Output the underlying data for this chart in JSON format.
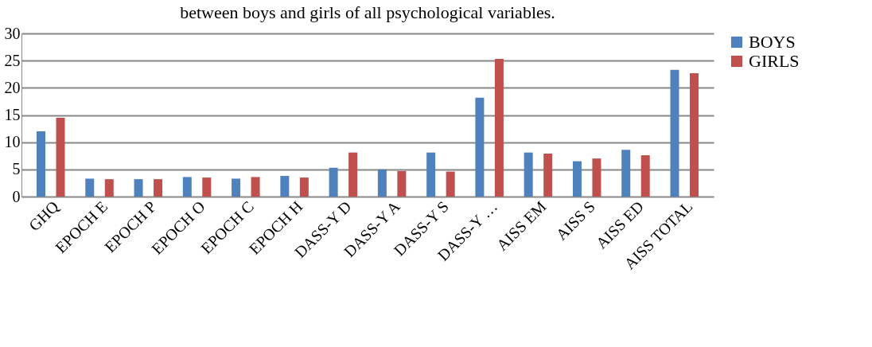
{
  "chart_data": {
    "type": "bar",
    "title": "between boys and girls of all psychological variables.",
    "categories": [
      "GHQ",
      "EPOCH E",
      "EPOCH P",
      "EPOCH O",
      "EPOCH C",
      "EPOCH H",
      "DASS-Y D",
      "DASS-Y A",
      "DASS-Y S",
      "DASS-Y …",
      "AISS EM",
      "AISS S",
      "AISS ED",
      "AISS TOTAL"
    ],
    "series": [
      {
        "name": "BOYS",
        "color": "#4f81bd",
        "values": [
          12.0,
          3.3,
          3.2,
          3.6,
          3.3,
          3.8,
          5.3,
          5.0,
          8.1,
          18.2,
          8.1,
          6.5,
          8.6,
          23.3
        ]
      },
      {
        "name": "GIRLS",
        "color": "#c0504d",
        "values": [
          14.5,
          3.2,
          3.2,
          3.5,
          3.6,
          3.5,
          8.1,
          4.7,
          4.6,
          25.3,
          7.9,
          7.0,
          7.6,
          22.7
        ]
      }
    ],
    "ylim": [
      0,
      30
    ],
    "yticks": [
      0,
      5,
      10,
      15,
      20,
      25,
      30
    ],
    "grid": "y",
    "legend": "right"
  }
}
